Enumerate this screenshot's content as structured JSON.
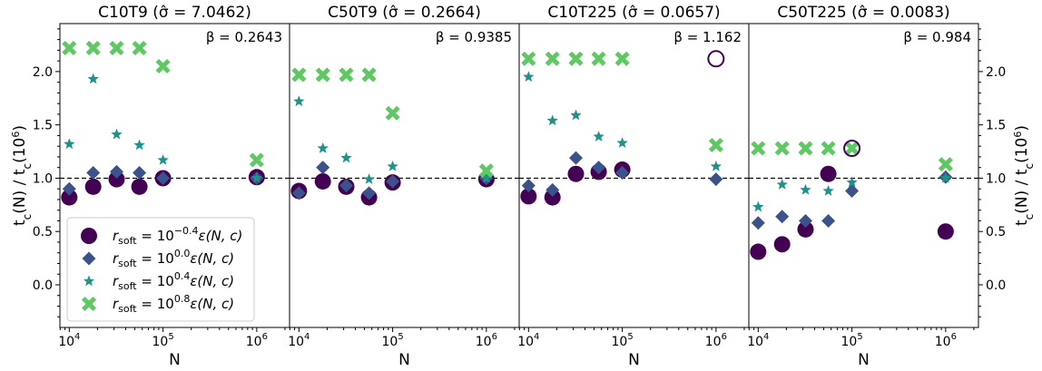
{
  "chart_data": {
    "type": "scatter",
    "ylabel_html": "t<tspan baseline-shift='sub' font-size='12'>c</tspan>(N) / t<tspan baseline-shift='sub' font-size='12'>c</tspan>(10<tspan baseline-shift='super' font-size='11'>6</tspan>)",
    "xlabel": "N",
    "ylim": [
      -0.4,
      2.45
    ],
    "yticks": [
      0.0,
      0.5,
      1.0,
      1.5,
      2.0
    ],
    "ytick_labels": [
      "0.0",
      "0.5",
      "1.0",
      "1.5",
      "2.0"
    ],
    "xlim_log10": [
      3.9,
      6.35
    ],
    "xticks_log10": [
      4,
      5,
      6
    ],
    "reference_line_y": 1.0,
    "series_styles": [
      {
        "marker": "circle",
        "color": "#440154"
      },
      {
        "marker": "diamond",
        "color": "#3b528b"
      },
      {
        "marker": "star",
        "color": "#21918c"
      },
      {
        "marker": "x",
        "color": "#5ec962"
      }
    ],
    "legend": {
      "placement": "lower-left",
      "entries": [
        {
          "base": "r",
          "sub": "soft",
          "mid": " = 10",
          "sup": "−0.4",
          "tail": "ε(N, c)"
        },
        {
          "base": "r",
          "sub": "soft",
          "mid": " = 10",
          "sup": "0.0",
          "tail": "ε(N, c)"
        },
        {
          "base": "r",
          "sub": "soft",
          "mid": " = 10",
          "sup": "0.4",
          "tail": "ε(N, c)"
        },
        {
          "base": "r",
          "sub": "soft",
          "mid": " = 10",
          "sup": "0.8",
          "tail": "ε(N, c)"
        }
      ]
    },
    "panels": [
      {
        "title": "C10T9 (σ̂ = 7.0462)",
        "beta": "β = 0.2643",
        "series": [
          {
            "x": [
              10000,
              18000,
              32000,
              56000,
              100000,
              1000000
            ],
            "y": [
              0.82,
              0.92,
              0.99,
              0.92,
              1.0,
              1.01
            ]
          },
          {
            "x": [
              10000,
              18000,
              32000,
              56000,
              100000,
              1000000
            ],
            "y": [
              0.9,
              1.05,
              1.06,
              1.05,
              1.0,
              1.0
            ]
          },
          {
            "x": [
              10000,
              18000,
              32000,
              56000,
              100000,
              1000000
            ],
            "y": [
              1.32,
              1.93,
              1.41,
              1.31,
              1.17,
              1.0
            ]
          },
          {
            "x": [
              10000,
              18000,
              32000,
              56000,
              100000,
              1000000
            ],
            "y": [
              2.22,
              2.22,
              2.22,
              2.22,
              2.05,
              1.17
            ]
          }
        ],
        "hollow": []
      },
      {
        "title": "C50T9 (σ̂ = 0.2664)",
        "beta": "β = 0.9385",
        "series": [
          {
            "x": [
              10000,
              18000,
              32000,
              56000,
              100000,
              1000000
            ],
            "y": [
              0.88,
              0.97,
              0.92,
              0.82,
              0.96,
              0.99
            ]
          },
          {
            "x": [
              10000,
              18000,
              32000,
              56000,
              100000,
              1000000
            ],
            "y": [
              0.86,
              1.1,
              0.93,
              0.86,
              0.97,
              1.0
            ]
          },
          {
            "x": [
              10000,
              18000,
              32000,
              56000,
              100000,
              1000000
            ],
            "y": [
              1.72,
              1.28,
              1.19,
              0.99,
              1.11,
              1.0
            ]
          },
          {
            "x": [
              10000,
              18000,
              32000,
              56000,
              100000,
              1000000
            ],
            "y": [
              1.97,
              1.97,
              1.97,
              1.97,
              1.61,
              1.07
            ]
          }
        ],
        "hollow": []
      },
      {
        "title": "C10T225 (σ̂ = 0.0657)",
        "beta": "β = 1.162",
        "series": [
          {
            "x": [
              10000,
              18000,
              32000,
              56000,
              100000
            ],
            "y": [
              0.83,
              0.82,
              1.04,
              1.06,
              1.08
            ]
          },
          {
            "x": [
              10000,
              18000,
              32000,
              56000,
              100000,
              1000000
            ],
            "y": [
              0.93,
              0.89,
              1.19,
              1.1,
              1.05,
              0.99
            ]
          },
          {
            "x": [
              10000,
              18000,
              32000,
              56000,
              100000,
              1000000
            ],
            "y": [
              1.95,
              1.54,
              1.59,
              1.39,
              1.33,
              1.11
            ]
          },
          {
            "x": [
              10000,
              18000,
              32000,
              56000,
              100000,
              1000000
            ],
            "y": [
              2.12,
              2.12,
              2.12,
              2.12,
              2.12,
              1.31
            ]
          }
        ],
        "hollow": [
          {
            "x": 1000000,
            "y": 2.12
          }
        ]
      },
      {
        "title": "C50T225 (σ̂ = 0.0083)",
        "beta": "β = 0.984",
        "series": [
          {
            "x": [
              10000,
              18000,
              32000,
              56000,
              1000000
            ],
            "y": [
              0.31,
              0.38,
              0.52,
              1.04,
              0.5
            ]
          },
          {
            "x": [
              10000,
              18000,
              32000,
              56000,
              100000,
              1000000
            ],
            "y": [
              0.58,
              0.64,
              0.6,
              0.6,
              0.88,
              1.01
            ]
          },
          {
            "x": [
              10000,
              18000,
              32000,
              56000,
              100000,
              1000000
            ],
            "y": [
              0.73,
              0.94,
              0.89,
              0.88,
              0.96,
              1.0
            ]
          },
          {
            "x": [
              10000,
              18000,
              32000,
              56000,
              100000,
              1000000
            ],
            "y": [
              1.28,
              1.28,
              1.28,
              1.28,
              1.28,
              1.13
            ]
          }
        ],
        "hollow": [
          {
            "x": 100000,
            "y": 1.28
          }
        ]
      }
    ]
  }
}
